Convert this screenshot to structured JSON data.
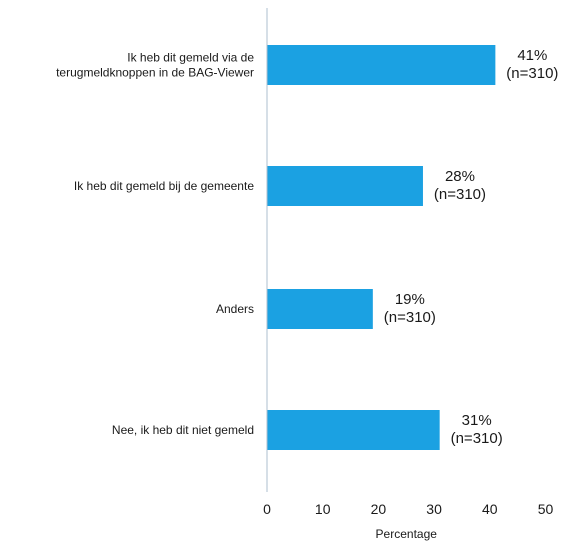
{
  "chart_data": {
    "type": "bar",
    "orientation": "horizontal",
    "categories": [
      [
        "Ik heb dit gemeld via de",
        "terugmeldknoppen in de BAG-Viewer"
      ],
      [
        "Ik heb dit gemeld bij de gemeente"
      ],
      [
        "Anders"
      ],
      [
        "Nee, ik heb dit niet gemeld"
      ]
    ],
    "values": [
      41,
      28,
      19,
      31
    ],
    "data_labels": [
      [
        "41%",
        "(n=310)"
      ],
      [
        "28%",
        "(n=310)"
      ],
      [
        "19%",
        "(n=310)"
      ],
      [
        "31%",
        "(n=310)"
      ]
    ],
    "xlabel": "Percentage",
    "xlim": [
      0,
      50
    ],
    "xticks": [
      "0",
      "10",
      "20",
      "30",
      "40",
      "50"
    ],
    "grid": false,
    "legend": "none",
    "colors": {
      "bar": "#1ba1e2",
      "axis": "#aebfcf"
    }
  }
}
